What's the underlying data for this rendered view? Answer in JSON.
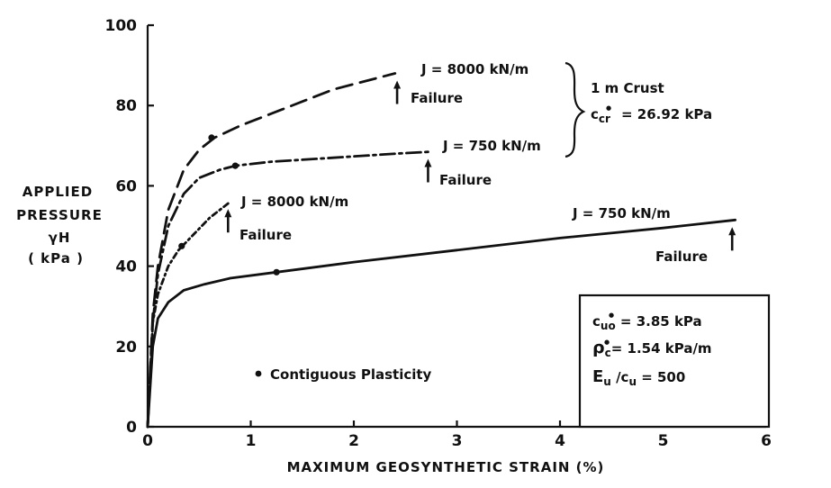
{
  "chart_data": {
    "type": "line",
    "xlabel": "MAXIMUM  GEOSYNTHETIC  STRAIN  (%)",
    "ylabel": [
      "APPLIED",
      "PRESSURE",
      "γH",
      "( kPa )"
    ],
    "xlim": [
      0,
      6
    ],
    "ylim": [
      0,
      100
    ],
    "xticks": [
      0,
      1,
      2,
      3,
      4,
      5,
      6
    ],
    "yticks": [
      0,
      20,
      40,
      60,
      80,
      100
    ],
    "grid": false,
    "series": [
      {
        "name": "J = 8000 kN/m",
        "style": "dashed",
        "x": [
          0,
          0.05,
          0.1,
          0.2,
          0.35,
          0.5,
          0.65,
          0.9,
          1.3,
          1.8,
          2.4
        ],
        "y": [
          0,
          28,
          40,
          54,
          64,
          69,
          72,
          75,
          79,
          84,
          88
        ],
        "contiguous_plasticity": [
          0.62,
          72
        ],
        "failure_at": 2.42
      },
      {
        "name": "J = 750 kN/m",
        "style": "dash-dot",
        "x": [
          0,
          0.05,
          0.1,
          0.2,
          0.35,
          0.5,
          0.7,
          0.85,
          1.2,
          1.8,
          2.4,
          2.75
        ],
        "y": [
          0,
          26,
          38,
          50,
          58,
          62,
          64,
          65,
          66,
          67,
          68,
          68.5
        ],
        "contiguous_plasticity": [
          0.85,
          65
        ],
        "failure_at": 2.72
      },
      {
        "name": "J = 8000 kN/m",
        "style": "dotted-dash",
        "x": [
          0,
          0.05,
          0.1,
          0.2,
          0.3,
          0.45,
          0.6,
          0.8
        ],
        "y": [
          0,
          26,
          33,
          40,
          44,
          48,
          52,
          56
        ],
        "contiguous_plasticity": [
          0.33,
          45
        ],
        "failure_at": 0.78
      },
      {
        "name": "J = 750 kN/m",
        "style": "solid",
        "x": [
          0,
          0.05,
          0.1,
          0.2,
          0.35,
          0.55,
          0.8,
          1.25,
          2,
          3,
          4,
          5,
          5.7
        ],
        "y": [
          0,
          20,
          27,
          31,
          34,
          35.5,
          37,
          38.5,
          41,
          44,
          47,
          49.5,
          51.5
        ],
        "contiguous_plasticity": [
          1.25,
          38.5
        ],
        "failure_at": 5.67
      }
    ],
    "annotations": {
      "failure": "Failure",
      "crust_line1": "1 m  Crust",
      "crust_line2": "c",
      "crust_sub": "cr",
      "crust_sup": "●",
      "crust_value": " = 26.92 kPa",
      "legend_marker_label": "Contiguous  Plasticity",
      "box_line1_sym": "c",
      "box_line1_sub": "uo",
      "box_line1_sup": "●",
      "box_line1_val": " = 3.85 kPa",
      "box_line2_sym": "ρ",
      "box_line2_sub": "c",
      "box_line2_sup": "●",
      "box_line2_val": "= 1.54 kPa/m",
      "box_line3": "E",
      "box_line3_sub1": "u",
      "box_line3_mid": " /c",
      "box_line3_sub2": "u",
      "box_line3_val": " = 500"
    }
  }
}
